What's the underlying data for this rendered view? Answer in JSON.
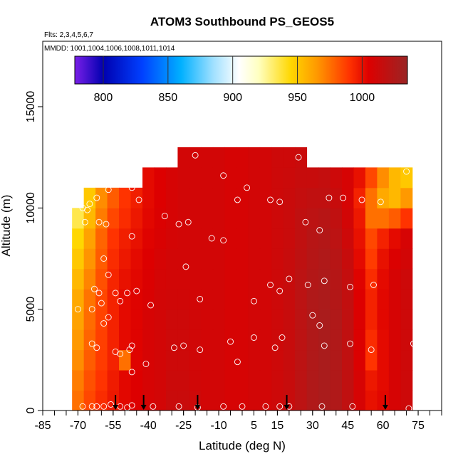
{
  "chart_data": {
    "type": "heatmap",
    "title": "ATOM3 Southbound PS_GEOS5",
    "subtitle": "Flts: 2,3,4,5,6,7",
    "annotation": "MMDD: 1001,1004,1006,1008,1011,1014",
    "x_label": "Latitude (deg N)",
    "y_label": "Altitude (m)",
    "xlim": [
      -85,
      85
    ],
    "ylim": [
      0,
      18230
    ],
    "xticks": [
      -85,
      -70,
      -55,
      -40,
      -25,
      -10,
      5,
      15,
      30,
      45,
      60,
      75
    ],
    "xminorticks": [
      -85,
      -80,
      -75,
      -70,
      -65,
      -60,
      -55,
      -50,
      -45,
      -40,
      -35,
      -30,
      -25,
      -20,
      -15,
      -10,
      -5,
      0,
      5,
      10,
      15,
      20,
      25,
      30,
      35,
      40,
      45,
      50,
      55,
      60,
      65,
      70,
      75,
      80,
      85
    ],
    "yticks": [
      0,
      5000,
      10000,
      15000
    ],
    "columns": [
      -70,
      -65,
      -60,
      -55,
      -50,
      -45,
      -40,
      -35,
      -30,
      -25,
      -20,
      -15,
      -10,
      -5,
      0,
      5,
      10,
      15,
      20,
      25,
      30,
      35,
      40,
      45,
      50,
      55,
      60,
      65,
      70
    ],
    "rows": [
      0,
      1000,
      2000,
      3000,
      4000,
      5000,
      6000,
      7000,
      8000,
      9000,
      10000,
      11000,
      12000
    ],
    "values": [
      [
        975,
        985,
        992,
        998,
        1003,
        1005,
        1008,
        1010,
        1014,
        1014,
        1012,
        1010,
        1010,
        1008,
        1008,
        1010,
        1010,
        1012,
        1015,
        1020,
        1025,
        1028,
        1025,
        1018,
        1008,
        1000,
        1003,
        1008,
        1012
      ],
      [
        972,
        983,
        990,
        997,
        1003,
        1005,
        1008,
        1010,
        1013,
        1013,
        1011,
        1010,
        1010,
        1008,
        1008,
        1010,
        1010,
        1012,
        1015,
        1020,
        1025,
        1028,
        1025,
        1018,
        1008,
        998,
        1002,
        1008,
        1012
      ],
      [
        968,
        980,
        988,
        995,
        975,
        1004,
        1008,
        1010,
        1012,
        1012,
        1011,
        1010,
        1010,
        1008,
        1008,
        1010,
        1010,
        1012,
        1015,
        1020,
        1025,
        1028,
        1025,
        1018,
        1006,
        990,
        1002,
        1008,
        1012
      ],
      [
        965,
        978,
        987,
        995,
        1002,
        1004,
        1008,
        1010,
        1012,
        1012,
        1011,
        1010,
        1010,
        1008,
        1008,
        1010,
        1010,
        1012,
        1015,
        1020,
        1025,
        1028,
        1025,
        1018,
        1006,
        992,
        1002,
        1008,
        1012
      ],
      [
        962,
        976,
        986,
        995,
        1002,
        1004,
        1008,
        1010,
        1012,
        1012,
        1011,
        1010,
        1010,
        1008,
        1008,
        1010,
        1010,
        1012,
        1015,
        1020,
        1025,
        1028,
        1025,
        1018,
        1006,
        995,
        1003,
        1008,
        1012
      ],
      [
        960,
        974,
        985,
        995,
        1002,
        1004,
        1007,
        1010,
        1011,
        1011,
        1010,
        1010,
        1010,
        1008,
        1008,
        1010,
        1010,
        1012,
        1015,
        1020,
        1025,
        1027,
        1024,
        1017,
        1005,
        995,
        1003,
        1008,
        1012
      ],
      [
        955,
        970,
        983,
        994,
        1000,
        1003,
        1006,
        1009,
        1010,
        1010,
        1010,
        1010,
        1010,
        1008,
        1008,
        1010,
        1010,
        1012,
        1015,
        1020,
        1024,
        1026,
        1023,
        1016,
        1004,
        992,
        1002,
        1008,
        1012
      ],
      [
        950,
        966,
        980,
        992,
        998,
        1002,
        1005,
        1008,
        1010,
        1010,
        1010,
        1010,
        1010,
        1008,
        1008,
        1010,
        1010,
        1012,
        1015,
        1019,
        1023,
        1025,
        1022,
        1015,
        1002,
        988,
        1000,
        1006,
        1010
      ],
      [
        945,
        962,
        978,
        990,
        996,
        1000,
        1004,
        1007,
        1009,
        1010,
        1010,
        1010,
        1010,
        1008,
        1008,
        1010,
        1010,
        1012,
        1014,
        1018,
        1022,
        1024,
        1020,
        1012,
        1000,
        985,
        995,
        1002,
        1008
      ],
      [
        935,
        955,
        972,
        985,
        992,
        998,
        1003,
        1006,
        1008,
        1010,
        1010,
        1010,
        1010,
        1008,
        1008,
        1010,
        1010,
        1012,
        1014,
        1018,
        1020,
        1022,
        1018,
        1010,
        998,
        975,
        975,
        980,
        990
      ],
      [
        null,
        950,
        968,
        980,
        990,
        996,
        1002,
        1005,
        1008,
        1010,
        1010,
        1010,
        1010,
        1008,
        1008,
        1010,
        1010,
        1012,
        1014,
        1016,
        1018,
        1018,
        1015,
        1008,
        995,
        975,
        960,
        955,
        965
      ],
      [
        null,
        null,
        null,
        null,
        null,
        null,
        1002,
        1005,
        1008,
        1010,
        1010,
        1010,
        1010,
        1008,
        1008,
        1010,
        1010,
        1012,
        1013,
        1015,
        1015,
        1016,
        1012,
        1008,
        1000,
        985,
        968,
        955,
        950
      ],
      [
        null,
        null,
        null,
        null,
        null,
        null,
        null,
        null,
        null,
        1010,
        1010,
        1010,
        1010,
        1008,
        1008,
        1010,
        1010,
        1012,
        1012,
        1014,
        null,
        null,
        null,
        null,
        null,
        null,
        null,
        null,
        null
      ]
    ],
    "points": {
      "lat": [
        -74,
        -68,
        -66,
        -65,
        -62,
        -57,
        -47,
        -44,
        -67,
        -61,
        -58,
        -47,
        -33,
        -27,
        -23,
        -20,
        -8,
        2,
        -13,
        -8,
        -2,
        12,
        16,
        24,
        27,
        33,
        37,
        43,
        51,
        59,
        70,
        -59,
        -57,
        -63,
        -61,
        -54,
        -49,
        -45,
        -39,
        -24,
        -18,
        5,
        12,
        16,
        20,
        28,
        35,
        46,
        56,
        -70,
        -64,
        -60,
        -52,
        -57,
        -59,
        -47,
        -52,
        -48,
        -54,
        -64,
        -62,
        -47,
        -41,
        -29,
        -25,
        -18,
        -5,
        -2,
        5,
        14,
        17,
        30,
        33,
        35,
        46,
        55,
        73,
        -68,
        -64,
        -62,
        -59,
        -52,
        -49,
        -56,
        -47,
        -38,
        -27,
        -19,
        -8,
        0,
        10,
        16,
        20,
        34,
        47,
        71
      ],
      "alt": [
        9950,
        10000,
        9900,
        10200,
        10500,
        10900,
        11000,
        10400,
        9300,
        9300,
        9200,
        8600,
        9600,
        9200,
        9300,
        12600,
        11600,
        11000,
        8500,
        8400,
        10400,
        10400,
        10300,
        12500,
        9300,
        8900,
        10500,
        10500,
        10400,
        10300,
        11800,
        7500,
        6700,
        6000,
        5800,
        5800,
        5800,
        5900,
        5200,
        7100,
        5500,
        5400,
        6200,
        5900,
        6500,
        6200,
        6400,
        6100,
        6200,
        5000,
        5000,
        5300,
        5400,
        4600,
        4300,
        3200,
        2800,
        3000,
        2900,
        3300,
        3100,
        1900,
        2300,
        3100,
        3200,
        3000,
        3400,
        2400,
        3600,
        3100,
        3600,
        4700,
        4200,
        3200,
        3300,
        3000,
        3300,
        200,
        200,
        200,
        200,
        200,
        150,
        300,
        250,
        200,
        200,
        150,
        200,
        200,
        200,
        200,
        200,
        200,
        200,
        100
      ]
    },
    "markers_lat": [
      -54,
      -42,
      -19,
      19,
      61
    ],
    "colorbar": {
      "lim": [
        778,
        1035
      ],
      "ticks": [
        800,
        850,
        900,
        950,
        1000
      ],
      "colormap": [
        [
          778,
          "#7a1fe8"
        ],
        [
          800,
          "#0000b0"
        ],
        [
          830,
          "#0040ff"
        ],
        [
          860,
          "#00b0ff"
        ],
        [
          885,
          "#a0e0ff"
        ],
        [
          905,
          "#ffffff"
        ],
        [
          920,
          "#ffffc0"
        ],
        [
          945,
          "#ffd700"
        ],
        [
          965,
          "#ff9900"
        ],
        [
          990,
          "#ff3300"
        ],
        [
          1005,
          "#dd0000"
        ],
        [
          1035,
          "#9a2525"
        ]
      ]
    }
  }
}
